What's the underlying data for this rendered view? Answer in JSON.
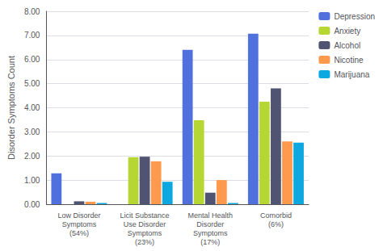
{
  "chart_data": {
    "type": "bar",
    "ylabel": "Disorder Symptoms Count",
    "categories": [
      "Low Disorder\nSymptoms\n(54%)",
      "Licit Substance\nUse Disorder\nSymptoms\n(23%)",
      "Mental Health\nDisorder\nSymptoms\n(17%)",
      "Comorbid\n(6%)"
    ],
    "series": [
      {
        "name": "Depression",
        "values": [
          1.28,
          0.0,
          6.4,
          7.07
        ]
      },
      {
        "name": "Anxiety",
        "values": [
          0.0,
          1.95,
          3.48,
          4.25
        ]
      },
      {
        "name": "Alcohol",
        "values": [
          0.12,
          1.97,
          0.48,
          4.8
        ]
      },
      {
        "name": "Nicotine",
        "values": [
          0.1,
          1.78,
          1.0,
          2.6
        ]
      },
      {
        "name": "Marijuana",
        "values": [
          0.05,
          0.93,
          0.05,
          2.55
        ]
      }
    ],
    "ylim": [
      0.0,
      8.0
    ],
    "yticks": [
      {
        "value": 0,
        "label": "0.00"
      },
      {
        "value": 1,
        "label": "1.00"
      },
      {
        "value": 2,
        "label": "2.00"
      },
      {
        "value": 3,
        "label": "3.00"
      },
      {
        "value": 4,
        "label": "4.00"
      },
      {
        "value": 5,
        "label": "5.00"
      },
      {
        "value": 6,
        "label": "6.00"
      },
      {
        "value": 7,
        "label": "7.00"
      },
      {
        "value": 8,
        "label": "8.00"
      }
    ],
    "grid": true,
    "legend": "upper right"
  }
}
